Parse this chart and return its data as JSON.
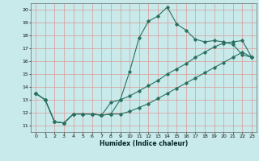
{
  "title": "",
  "xlabel": "Humidex (Indice chaleur)",
  "bg_color": "#c8eaea",
  "grid_color": "#dd9999",
  "line_color": "#2a7060",
  "xlim": [
    -0.5,
    23.5
  ],
  "ylim": [
    10.5,
    20.5
  ],
  "xticks": [
    0,
    1,
    2,
    3,
    4,
    5,
    6,
    7,
    8,
    9,
    10,
    11,
    12,
    13,
    14,
    15,
    16,
    17,
    18,
    19,
    20,
    21,
    22,
    23
  ],
  "yticks": [
    11,
    12,
    13,
    14,
    15,
    16,
    17,
    18,
    19,
    20
  ],
  "line1_x": [
    0,
    1,
    2,
    3,
    4,
    5,
    6,
    7,
    8,
    9,
    10,
    11,
    12,
    13,
    14,
    15,
    16,
    17,
    18,
    19,
    20,
    21,
    22,
    23
  ],
  "line1_y": [
    13.5,
    13.0,
    11.3,
    11.2,
    11.9,
    11.9,
    11.9,
    11.8,
    11.9,
    13.0,
    15.2,
    17.8,
    19.1,
    19.5,
    20.2,
    18.9,
    18.4,
    17.7,
    17.5,
    17.6,
    17.5,
    17.3,
    16.5,
    16.3
  ],
  "line2_x": [
    0,
    1,
    2,
    3,
    4,
    5,
    6,
    7,
    8,
    9,
    10,
    11,
    12,
    13,
    14,
    15,
    16,
    17,
    18,
    19,
    20,
    21,
    22,
    23
  ],
  "line2_y": [
    13.5,
    13.0,
    11.3,
    11.2,
    11.9,
    11.9,
    11.9,
    11.8,
    12.8,
    13.0,
    13.3,
    13.7,
    14.1,
    14.5,
    15.0,
    15.4,
    15.8,
    16.3,
    16.7,
    17.1,
    17.4,
    17.5,
    17.6,
    16.3
  ],
  "line3_x": [
    0,
    1,
    2,
    3,
    4,
    5,
    6,
    7,
    8,
    9,
    10,
    11,
    12,
    13,
    14,
    15,
    16,
    17,
    18,
    19,
    20,
    21,
    22,
    23
  ],
  "line3_y": [
    13.5,
    13.0,
    11.3,
    11.2,
    11.9,
    11.9,
    11.9,
    11.8,
    11.9,
    11.9,
    12.1,
    12.4,
    12.7,
    13.1,
    13.5,
    13.9,
    14.3,
    14.7,
    15.1,
    15.5,
    15.9,
    16.3,
    16.7,
    16.3
  ]
}
